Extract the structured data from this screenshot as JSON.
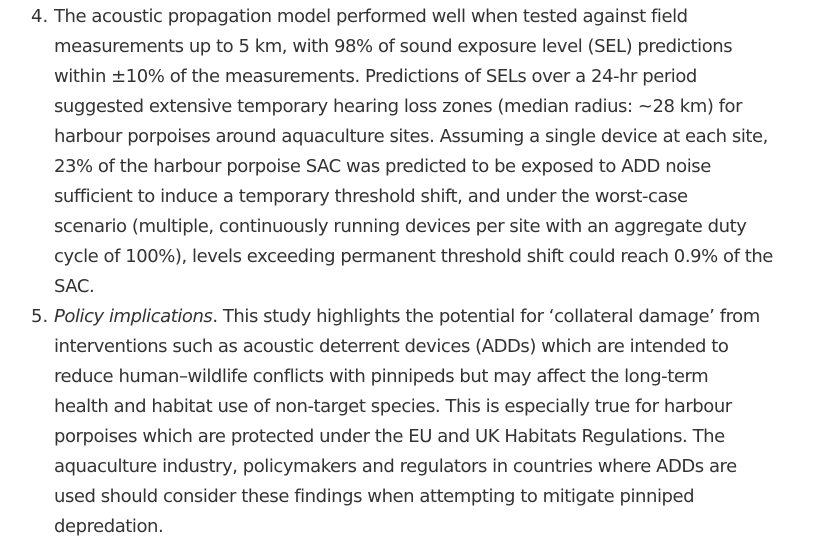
{
  "items": [
    {
      "number": "4.",
      "lines": [
        "The acoustic propagation model performed well when tested against field",
        "measurements up to 5 km, with 98% of sound exposure level (SEL) predictions",
        "within ±10% of the measurements. Predictions of SELs over a 24-hr period",
        "suggested extensive temporary hearing loss zones (median radius: ~28 km) for",
        "harbour porpoises around aquaculture sites. Assuming a single device at each site,",
        "23% of the harbour porpoise SAC was predicted to be exposed to ADD noise",
        "sufficient to induce a temporary threshold shift, and under the worst-case",
        "scenario (multiple, continuously running devices per site with an aggregate duty",
        "cycle of 100%), levels exceeding permanent threshold shift could reach 0.9% of the",
        "SAC."
      ]
    },
    {
      "number": "5.",
      "italic_lead": "Policy implications",
      "first_line_rest": ". This study highlights the potential for ‘collateral damage’ from",
      "lines": [
        "interventions such as acoustic deterrent devices (ADDs) which are intended to",
        "reduce human–wildlife conflicts with pinnipeds but may affect the long-term",
        "health and habitat use of non-target species. This is especially true for harbour",
        "porpoises which are protected under the EU and UK Habitats Regulations. The",
        "aquaculture industry, policymakers and regulators in countries where ADDs are",
        "used should consider these findings when attempting to mitigate pinniped",
        "depredation."
      ]
    }
  ]
}
